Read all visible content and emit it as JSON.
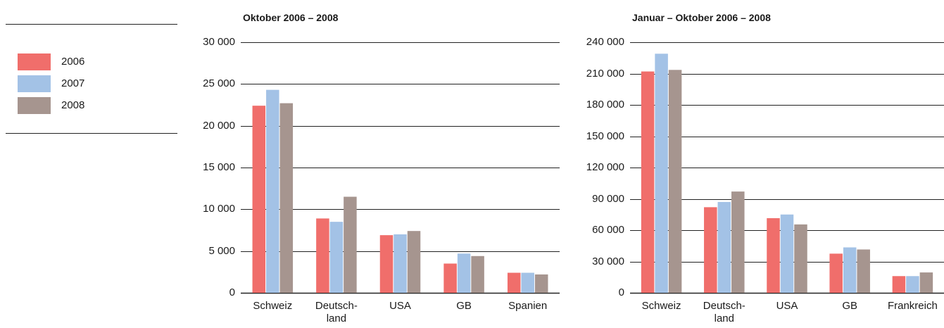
{
  "chart_data": [
    {
      "type": "bar",
      "title": "Oktober 2006 – 2008",
      "categories": [
        "Schweiz",
        "Deutsch-\nland",
        "USA",
        "GB",
        "Spanien"
      ],
      "series": [
        {
          "name": "2006",
          "color": "#f06e6b",
          "values": [
            22400,
            8900,
            6900,
            3500,
            2400
          ]
        },
        {
          "name": "2007",
          "color": "#a3c2e6",
          "values": [
            24300,
            8500,
            7000,
            4700,
            2400
          ]
        },
        {
          "name": "2008",
          "color": "#a6958f",
          "values": [
            22700,
            11500,
            7400,
            4400,
            2200
          ]
        }
      ],
      "ylim": [
        0,
        30000
      ],
      "yticks": [
        0,
        {
          "value": 5000,
          "label": "5 000"
        },
        {
          "value": 10000,
          "label": "10 000"
        },
        {
          "value": 15000,
          "label": "15 000"
        },
        {
          "value": 20000,
          "label": "20 000"
        },
        {
          "value": 25000,
          "label": "25 000"
        },
        {
          "value": 30000,
          "label": "30 000"
        }
      ],
      "grid": true
    },
    {
      "type": "bar",
      "title": "Januar – Oktober 2006 – 2008",
      "categories": [
        "Schweiz",
        "Deutsch-\nland",
        "USA",
        "GB",
        "Frankreich"
      ],
      "series": [
        {
          "color": "#f06e6b",
          "values": [
            212000,
            82000,
            71500,
            37500,
            16000
          ]
        },
        {
          "color": "#a3c2e6",
          "values": [
            229000,
            87000,
            75000,
            43500,
            16000
          ]
        },
        {
          "color": "#a6958f",
          "values": [
            213500,
            97000,
            65500,
            41500,
            19500
          ]
        }
      ],
      "ylim": [
        0,
        240000
      ],
      "yticks": [
        0,
        {
          "value": 30000,
          "label": "30 000"
        },
        {
          "value": 60000,
          "label": "60 000"
        },
        {
          "value": 90000,
          "label": "90 000"
        },
        {
          "value": 120000,
          "label": "120 000"
        },
        {
          "value": 150000,
          "label": "150 000"
        },
        {
          "value": 180000,
          "label": "180 000"
        },
        {
          "value": 210000,
          "label": "210 000"
        },
        {
          "value": 240000,
          "label": "240 000"
        }
      ],
      "grid": true
    }
  ]
}
